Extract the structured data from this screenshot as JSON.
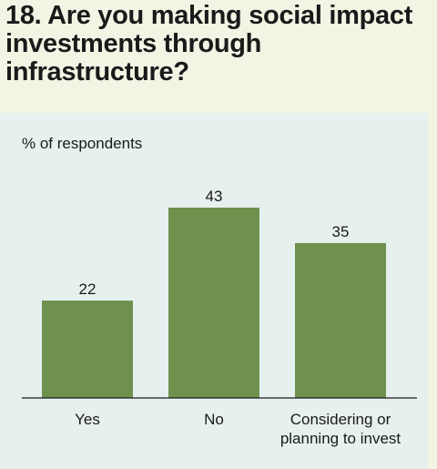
{
  "question": "18. Are you making social impact investments through infrastructure?",
  "colors": {
    "page_background": "#f2f4e4",
    "panel_background": "#e6f0ef",
    "bar": "#6e914d",
    "text": "#1a1a1a"
  },
  "chart_data": {
    "type": "bar",
    "title": "18. Are you making social impact investments through infrastructure?",
    "ylabel": "% of respondents",
    "xlabel": "",
    "categories": [
      "Yes",
      "No",
      "Considering or planning to invest"
    ],
    "values": [
      22,
      43,
      35
    ],
    "value_labels": [
      "22",
      "43",
      "35"
    ],
    "ylim": [
      0,
      50
    ],
    "grid": false,
    "legend": "none"
  }
}
